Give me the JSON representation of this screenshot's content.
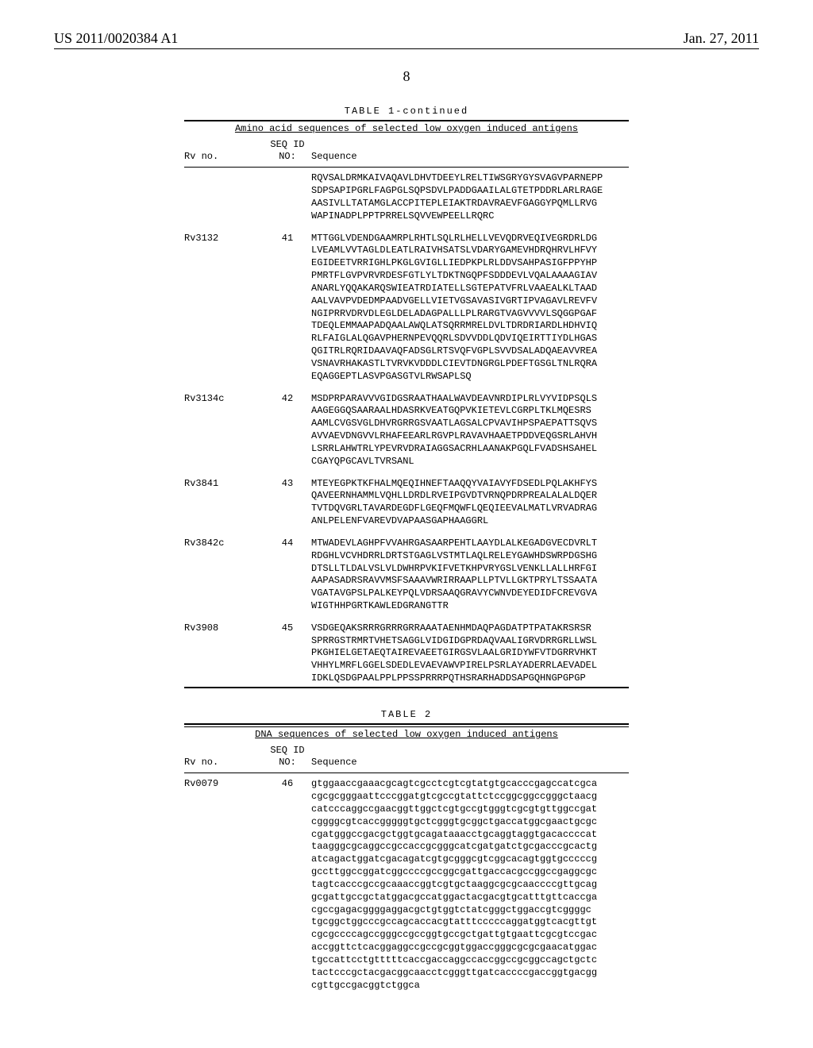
{
  "header": {
    "left": "US 2011/0020384 A1",
    "right": "Jan. 27, 2011"
  },
  "page_number": "8",
  "table1": {
    "title": "TABLE 1-continued",
    "subhead": "Amino acid sequences of selected low oxygen induced antigens",
    "col_rv": "Rv no.",
    "col_seqid_top": "SEQ ID",
    "col_seqid_bot": "NO:",
    "col_sequence": "Sequence",
    "rows": [
      {
        "rv": "",
        "seqid": "",
        "lines": [
          "RQVSALDRMKAIVAQAVLDHVTDEEYLRELTIWSGRYGYSVAGVPARNEPP",
          "SDPSAPIPGRLFAGPGLSQPSDVLPADDGAAILALGTETPDDRLARLRAGE",
          "AASIVLLTATAMGLACCPITEPLEIAKTRDAVRAEVFGAGGYPQMLLRVG",
          "WAPINADPLPPTPRRELSQVVEWPEELLRQRC"
        ]
      },
      {
        "rv": "Rv3132",
        "seqid": "41",
        "lines": [
          "MTTGGLVDENDGAAMRPLRHTLSQLRLHELLVEVQDRVEQIVEGRDRLDG",
          "LVEAMLVVTAGLDLEATLRAIVHSATSLVDARYGAMEVHDRQHRVLHFVY",
          "EGIDEETVRRIGHLPKGLGVIGLLIEDPKPLRLDDVSAHPASIGFPPYHP",
          "PMRTFLGVPVRVRDESFGTLYLTDKTNGQPFSDDDEVLVQALAAAAGIAV",
          "ANARLYQQAKARQSWIEATRDIATELLSGTEPATVFRLVAAEALKLTAAD",
          "AALVAVPVDEDMPAADVGELLVIETVGSAVASIVGRTIPVAGAVLREVFV",
          "NGIPRRVDRVDLEGLDELADAGPALLLPLRARGTVAGVVVVLSQGGPGAF",
          "TDEQLEMMAAPADQAALAWQLATSQRRMRELDVLTDRDRIARDLHDHVIQ",
          "RLFAIGLALQGAVPHERNPEVQQRLSDVVDDLQDVIQEIRTTIYDLHGAS",
          "QGITRLRQRIDAAVAQFADSGLRTSVQFVGPLSVVDSALADQAEAVVREA",
          "VSNAVRHAKASTLTVRVKVDDDLCIEVTDNGRGLPDEFTGSGLTNLRQRA",
          "EQAGGEPTLASVPGASGTVLRWSAPLSQ"
        ]
      },
      {
        "rv": "Rv3134c",
        "seqid": "42",
        "lines": [
          "MSDPRPARAVVVGIDGSRAATHAALWAVDEAVNRDIPLRLVYVIDPSQLS",
          "AAGEGGQSAARAALHDASRKVEATGQPVKIETEVLCGRPLTKLMQESRS",
          "AAMLCVGSVGLDHVRGRRGSVAATLAGSALCPVAVIHPSPAEPATTSQVS",
          "AVVAEVDNGVVLRHAFEEARLRGVPLRAVAVHAAETPDDVEQGSRLAHVH",
          "LSRRLAHWTRLYPEVRVDRAIAGGSACRHLAANAKPGQLFVADSHSAHEL",
          "CGAYQPGCAVLTVRSANL"
        ]
      },
      {
        "rv": "Rv3841",
        "seqid": "43",
        "lines": [
          "MTEYEGPKTKFHALMQEQIHNEFTAAQQYVAIAVYFDSEDLPQLAKHFYS",
          "QAVEERNHAMMLVQHLLDRDLRVEIPGVDTVRNQPDRPREALALALDQER",
          "TVTDQVGRLTAVARDEGDFLGEQFMQWFLQEQIEEVALMATLVRVADRAG",
          "ANLPELENFVAREVDVAPAASGAPHAAGGRL"
        ]
      },
      {
        "rv": "Rv3842c",
        "seqid": "44",
        "lines": [
          "MTWADEVLAGHPFVVAHRGASAARPEHTLAAYDLALKEGADGVECDVRLT",
          "RDGHLVCVHDRRLDRTSTGAGLVSTMTLAQLRELEYGAWHDSWRPDGSHG",
          "DTSLLTLDALVSLVLDWHRPVKIFVETKHPVRYGSLVENKLLALLHRFGI",
          "AAPASADRSRAVVMSFSAAAVWRIRRAAPLLPTVLLGKTPRYLTSSAATA",
          "VGATAVGPSLPALKEYPQLVDRSAAQGRAVYCWNVDEYEDIDFCREVGVA",
          "WIGTHHPGRTKAWLEDGRANGTTR"
        ]
      },
      {
        "rv": "Rv3908",
        "seqid": "45",
        "lines": [
          "VSDGEQAKSRRRGRRRGRRAAATAENHMDAQPAGDATPTPATAKRSRSR",
          "SPRRGSTRMRTVHETSAGGLVIDGIDGPRDAQVAALIGRVDRRGRLLWSL",
          "PKGHIELGETAEQTAIREVAEETGIRGSVLAALGRIDYWFVTDGRRVHKT",
          "VHHYLMRFLGGELSDEDLEVAEVAWVPIRELPSRLAYADERRLAEVADEL",
          "IDKLQSDGPAALPPLPPSSPRRRPQTHSRARHADDSAPGQHNGPGPGP"
        ]
      }
    ]
  },
  "table2": {
    "title": "TABLE 2",
    "subhead": "DNA sequences of selected low oxygen induced antigens",
    "col_rv": "Rv no.",
    "col_seqid_top": "SEQ ID",
    "col_seqid_bot": "NO:",
    "col_sequence": "Sequence",
    "rows": [
      {
        "rv": "Rv0079",
        "seqid": "46",
        "lines": [
          "gtggaaccgaaacgcagtcgcctcgtcgtatgtgcacccgagccatcgca",
          "cgcgcgggaattcccggatgtcgccgtattctccggcggccgggctaacg",
          "catcccaggccgaacggttggctcgtgccgtgggtcgcgtgttggccgat",
          "cggggcgtcaccgggggtgctcgggtgcggctgaccatggcgaactgcgc",
          "cgatgggccgacgctggtgcagataaacctgcaggtaggtgacaccccat",
          "taagggcgcaggccgccaccgcgggcatcgatgatctgcgacccgcactg",
          "atcagactggatcgacagatcgtgcgggcgtcggcacagtggtgcccccg",
          "gccttggccggatcggccccgccggcgattgaccacgccggccgaggcgc",
          "tagtcacccgccgcaaaccggtcgtgctaaggcgcgcaaccccgttgcag",
          "gcgattgccgctatggacgccatggactacgacgtgcatttgttcaccga",
          "cgccgagacggggaggacgctgtggtctatcgggctggaccgtcggggc",
          "tgcggctggcccgccagcaccacgtatttcccccaggatggtcacgttgt",
          "cgcgccccagccgggccgccggtgccgctgattgtgaattcgcgtccgac",
          "accggttctcacggaggccgccgcggtggaccgggcgcgcgaacatggac",
          "tgccattcctgtttttcaccgaccaggccaccggccgcggccagctgctc",
          "tactcccgctacgacggcaacctcgggttgatcaccccgaccggtgacgg",
          "cgttgccgacggtctggca"
        ]
      }
    ]
  }
}
